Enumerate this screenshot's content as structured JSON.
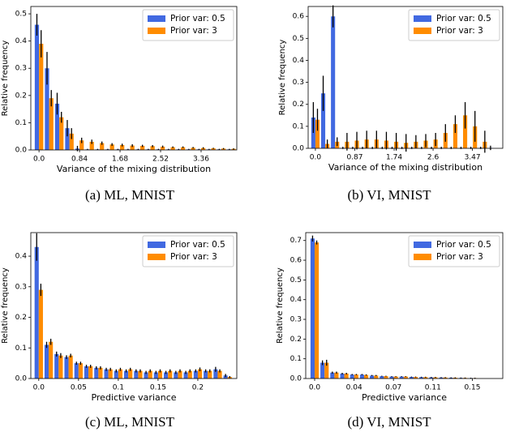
{
  "chart_data": [
    {
      "type": "bar",
      "caption": "(a) ML, MNIST",
      "xlabel": "Variance of the mixing distribution",
      "ylabel": "Relative frequency",
      "legend": "upper right",
      "x": [
        0,
        0.21,
        0.42,
        0.63,
        0.84,
        1.05,
        1.26,
        1.47,
        1.68,
        1.89,
        2.1,
        2.31,
        2.52,
        2.73,
        2.94,
        3.15,
        3.36,
        3.57,
        3.78,
        3.99
      ],
      "series": [
        {
          "name": "Prior var: 0.5",
          "color": "#4169e1",
          "values": [
            0.46,
            0.3,
            0.17,
            0.08,
            0.005,
            0.002,
            0.002,
            0.002,
            0.002,
            0.002,
            0.002,
            0.002,
            0.002,
            0.002,
            0.002,
            0.002,
            0.002,
            0.002,
            0.002,
            0.002
          ],
          "errors": [
            0.04,
            0.06,
            0.04,
            0.03,
            0.01,
            0.002,
            0.002,
            0.002,
            0.002,
            0.002,
            0.002,
            0.002,
            0.002,
            0.002,
            0.002,
            0.002,
            0.002,
            0.002,
            0.002,
            0.002
          ]
        },
        {
          "name": "Prior var: 3",
          "color": "#ff8c00",
          "values": [
            0.39,
            0.19,
            0.12,
            0.06,
            0.035,
            0.03,
            0.025,
            0.02,
            0.018,
            0.016,
            0.015,
            0.014,
            0.012,
            0.01,
            0.01,
            0.008,
            0.007,
            0.006,
            0.005,
            0.004
          ],
          "errors": [
            0.05,
            0.03,
            0.02,
            0.02,
            0.01,
            0.008,
            0.006,
            0.005,
            0.005,
            0.005,
            0.004,
            0.004,
            0.004,
            0.003,
            0.003,
            0.003,
            0.003,
            0.002,
            0.002,
            0.002
          ]
        }
      ],
      "xlim": [
        -0.17,
        4.1
      ],
      "xticks": [
        {
          "value": 0,
          "label": "0.0"
        },
        0.84,
        1.68,
        2.52,
        3.36
      ],
      "ylim": [
        0,
        0.527
      ],
      "yticks": [
        {
          "value": 0,
          "label": "0.0"
        },
        0.1,
        0.2,
        0.3,
        0.4,
        0.5
      ]
    },
    {
      "type": "bar",
      "caption": "(b) VI, MNIST",
      "xlabel": "Variance of the mixing distribution",
      "ylabel": "Relative frequency",
      "legend": "upper right",
      "x": [
        0,
        0.2175,
        0.435,
        0.6525,
        0.87,
        1.0875,
        1.305,
        1.5225,
        1.74,
        1.9575,
        2.175,
        2.3925,
        2.61,
        2.8275,
        3.045,
        3.2625,
        3.48,
        3.6975,
        3.915
      ],
      "series": [
        {
          "name": "Prior var: 0.5",
          "color": "#4169e1",
          "values": [
            0.14,
            0.25,
            0.6,
            0.002,
            0.002,
            0.002,
            0.002,
            0.002,
            0.002,
            0.002,
            0.002,
            0.002,
            0.002,
            0.002,
            0.002,
            0.002,
            0.002,
            0.002,
            0.002
          ],
          "errors": [
            0.07,
            0.08,
            0.05,
            0.005,
            0.005,
            0.005,
            0.005,
            0.005,
            0.005,
            0.005,
            0.005,
            0.005,
            0.005,
            0.005,
            0.005,
            0.005,
            0.005,
            0.005,
            0.01
          ]
        },
        {
          "name": "Prior var: 3",
          "color": "#ff8c00",
          "values": [
            0.13,
            0.02,
            0.03,
            0.03,
            0.035,
            0.04,
            0.04,
            0.035,
            0.03,
            0.025,
            0.03,
            0.035,
            0.04,
            0.07,
            0.11,
            0.15,
            0.1,
            0.03,
            0
          ],
          "errors": [
            0.05,
            0.02,
            0.02,
            0.04,
            0.04,
            0.04,
            0.04,
            0.04,
            0.04,
            0.04,
            0.03,
            0.03,
            0.03,
            0.04,
            0.04,
            0.06,
            0.07,
            0.05,
            0
          ]
        }
      ],
      "xlim": [
        -0.16,
        4.14
      ],
      "xticks": [
        {
          "value": 0,
          "label": "0.0"
        },
        0.87,
        1.74,
        2.6,
        3.47
      ],
      "ylim": [
        0,
        0.645
      ],
      "yticks": [
        {
          "value": 0,
          "label": "0.0"
        },
        0.1,
        0.2,
        0.3,
        0.4,
        0.5,
        0.6
      ]
    },
    {
      "type": "bar",
      "caption": "(c) ML, MNIST",
      "xlabel": "Predictive variance",
      "ylabel": "Relative frequency",
      "legend": "upper right",
      "x": [
        0,
        0.0125,
        0.025,
        0.0375,
        0.05,
        0.0625,
        0.075,
        0.0875,
        0.1,
        0.1125,
        0.125,
        0.1375,
        0.15,
        0.1625,
        0.175,
        0.1875,
        0.2,
        0.2125,
        0.225,
        0.2375
      ],
      "series": [
        {
          "name": "Prior var: 0.5",
          "color": "#4169e1",
          "values": [
            0.43,
            0.11,
            0.08,
            0.07,
            0.05,
            0.04,
            0.035,
            0.03,
            0.025,
            0.025,
            0.025,
            0.02,
            0.02,
            0.02,
            0.02,
            0.02,
            0.025,
            0.025,
            0.03,
            0.01
          ],
          "errors": [
            0.045,
            0.01,
            0.008,
            0.006,
            0.005,
            0.005,
            0.005,
            0.005,
            0.005,
            0.005,
            0.005,
            0.005,
            0.005,
            0.005,
            0.005,
            0.005,
            0.005,
            0.005,
            0.008,
            0.005
          ]
        },
        {
          "name": "Prior var: 3",
          "color": "#ff8c00",
          "values": [
            0.29,
            0.12,
            0.075,
            0.075,
            0.05,
            0.04,
            0.035,
            0.03,
            0.03,
            0.03,
            0.025,
            0.025,
            0.025,
            0.025,
            0.025,
            0.025,
            0.03,
            0.025,
            0.025,
            0.005
          ],
          "errors": [
            0.02,
            0.01,
            0.008,
            0.006,
            0.005,
            0.005,
            0.005,
            0.005,
            0.005,
            0.005,
            0.005,
            0.005,
            0.005,
            0.005,
            0.005,
            0.005,
            0.006,
            0.005,
            0.005,
            0.003
          ]
        }
      ],
      "xlim": [
        -0.01,
        0.249
      ],
      "xticks": [
        {
          "value": 0,
          "label": "0.0"
        },
        0.05,
        0.1,
        0.15,
        0.2
      ],
      "ylim": [
        0,
        0.477
      ],
      "yticks": [
        {
          "value": 0,
          "label": "0.0"
        },
        0.1,
        0.2,
        0.3,
        0.4
      ]
    },
    {
      "type": "bar",
      "caption": "(d) VI, MNIST",
      "xlabel": "Predictive variance",
      "ylabel": "Relative frequency",
      "legend": "upper right",
      "x": [
        0,
        0.0092,
        0.0184,
        0.0276,
        0.0368,
        0.046,
        0.0552,
        0.0644,
        0.0736,
        0.0828,
        0.092,
        0.1012,
        0.1104,
        0.1196,
        0.1288,
        0.138,
        0.1472
      ],
      "series": [
        {
          "name": "Prior var: 0.5",
          "color": "#4169e1",
          "values": [
            0.71,
            0.08,
            0.03,
            0.025,
            0.02,
            0.02,
            0.015,
            0.012,
            0.01,
            0.01,
            0.008,
            0.007,
            0.006,
            0.005,
            0.004,
            0.003,
            0.002
          ],
          "errors": [
            0.015,
            0.012,
            0.005,
            0.004,
            0.003,
            0.003,
            0.003,
            0.002,
            0.002,
            0.002,
            0.002,
            0.002,
            0.002,
            0.002,
            0.002,
            0.002,
            0.002
          ]
        },
        {
          "name": "Prior var: 3",
          "color": "#ff8c00",
          "values": [
            0.69,
            0.08,
            0.03,
            0.025,
            0.02,
            0.018,
            0.015,
            0.012,
            0.01,
            0.01,
            0.008,
            0.007,
            0.006,
            0.005,
            0.004,
            0.003,
            0.002
          ],
          "errors": [
            0.01,
            0.015,
            0.005,
            0.004,
            0.003,
            0.003,
            0.003,
            0.002,
            0.002,
            0.002,
            0.002,
            0.002,
            0.002,
            0.002,
            0.002,
            0.002,
            0.002
          ]
        }
      ],
      "xlim": [
        -0.0083,
        0.175
      ],
      "xticks": [
        {
          "value": 0,
          "label": "0.0"
        },
        {
          "value": 0.0367,
          "label": "0.04"
        },
        {
          "value": 0.0733,
          "label": "0.07"
        },
        {
          "value": 0.11,
          "label": "0.11"
        },
        {
          "value": 0.1467,
          "label": "0.15"
        }
      ],
      "ylim": [
        0,
        0.74
      ],
      "yticks": [
        {
          "value": 0,
          "label": "0.0"
        },
        0.1,
        0.2,
        0.3,
        0.4,
        0.5,
        0.6,
        0.7
      ]
    }
  ]
}
